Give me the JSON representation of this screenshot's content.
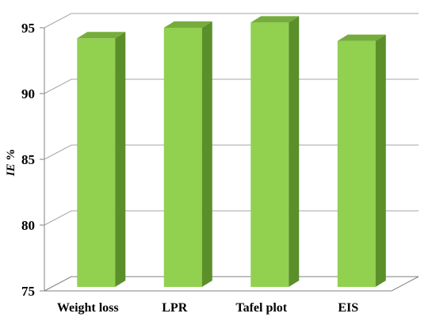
{
  "chart_data": {
    "type": "bar",
    "categories": [
      "Weight loss",
      "LPR",
      "Tafel plot",
      "EIS"
    ],
    "values": [
      93.9,
      94.7,
      95.1,
      93.7
    ],
    "ylim": [
      75,
      95
    ],
    "yticks": [
      75,
      80,
      85,
      90,
      95
    ],
    "ylabel_italic": "IE",
    "ylabel_rest": " %",
    "xlabel": "",
    "title": "",
    "grid": true,
    "legend": "none",
    "style": "3d",
    "colors": {
      "bar_front": "#92d050",
      "bar_side": "#5b8f2a",
      "bar_top": "#76ac3c",
      "grid": "#a6a6a6",
      "axis": "#808080"
    }
  }
}
